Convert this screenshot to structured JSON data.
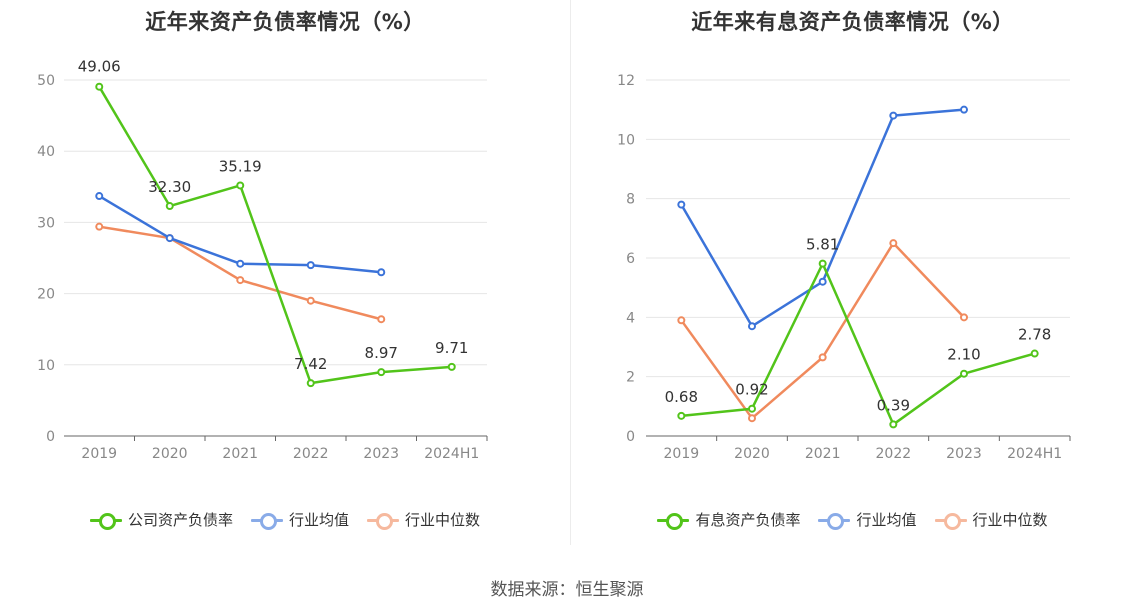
{
  "source": "数据来源：恒生聚源",
  "chart_data": [
    {
      "type": "line",
      "title": "近年来资产负债率情况（%）",
      "categories": [
        "2019",
        "2020",
        "2021",
        "2022",
        "2023",
        "2024H1"
      ],
      "ylim": [
        0,
        50
      ],
      "yticks": [
        0,
        10,
        20,
        30,
        40,
        50
      ],
      "grid": true,
      "legend_position": "bottom",
      "series": [
        {
          "name": "公司资产负债率",
          "color": "#52c41a",
          "values": [
            49.06,
            32.3,
            35.19,
            7.42,
            8.97,
            9.71
          ],
          "labels": [
            "49.06",
            "32.30",
            "35.19",
            "7.42",
            "8.97",
            "9.71"
          ]
        },
        {
          "name": "行业均值",
          "color": "#3b73d9",
          "values": [
            33.7,
            27.8,
            24.2,
            24.0,
            23.0,
            null
          ]
        },
        {
          "name": "行业中位数",
          "color": "#f08a5d",
          "values": [
            29.4,
            27.8,
            21.9,
            19.0,
            16.4,
            null
          ]
        }
      ]
    },
    {
      "type": "line",
      "title": "近年来有息资产负债率情况（%）",
      "categories": [
        "2019",
        "2020",
        "2021",
        "2022",
        "2023",
        "2024H1"
      ],
      "ylim": [
        0,
        12
      ],
      "yticks": [
        0,
        2,
        4,
        6,
        8,
        10,
        12
      ],
      "grid": true,
      "legend_position": "bottom",
      "series": [
        {
          "name": "有息资产负债率",
          "color": "#52c41a",
          "values": [
            0.68,
            0.92,
            5.81,
            0.39,
            2.1,
            2.78
          ],
          "labels": [
            "0.68",
            "0.92",
            "5.81",
            "0.39",
            "2.10",
            "2.78"
          ]
        },
        {
          "name": "行业均值",
          "color": "#3b73d9",
          "values": [
            7.8,
            3.7,
            5.2,
            10.8,
            11.0,
            null
          ]
        },
        {
          "name": "行业中位数",
          "color": "#f08a5d",
          "values": [
            3.9,
            0.6,
            2.65,
            6.5,
            4.0,
            null
          ]
        }
      ]
    }
  ]
}
